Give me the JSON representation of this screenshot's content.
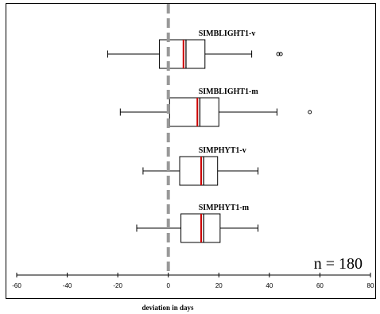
{
  "chart_data": {
    "type": "boxplot",
    "orientation": "horizontal",
    "xlabel": "deviation in days",
    "xlim": [
      -60,
      80
    ],
    "xticks": [
      -60,
      -40,
      -20,
      0,
      20,
      40,
      60,
      80
    ],
    "grid": false,
    "annotation": "n = 180",
    "reference_line": {
      "x": 0,
      "style": "dashed",
      "color": "#999999"
    },
    "mean_color": "#cc0000",
    "series": [
      {
        "name": "SIMBLIGHT1-v",
        "whisker_low": -24,
        "q1": -3.5,
        "median": 7,
        "q3": 14.5,
        "whisker_high": 33,
        "mean": 6,
        "outliers": [
          43.5,
          44.5
        ]
      },
      {
        "name": "SIMBLIGHT1-m",
        "whisker_low": -19,
        "q1": 0.5,
        "median": 12.5,
        "q3": 20,
        "whisker_high": 43,
        "mean": 11.5,
        "outliers": [
          56
        ]
      },
      {
        "name": "SIMPHYT1-v",
        "whisker_low": -10,
        "q1": 4.5,
        "median": 14,
        "q3": 19.5,
        "whisker_high": 35.5,
        "mean": 13,
        "outliers": []
      },
      {
        "name": "SIMPHYT1-m",
        "whisker_low": -12.5,
        "q1": 5,
        "median": 14,
        "q3": 20.5,
        "whisker_high": 35.5,
        "mean": 13,
        "outliers": []
      }
    ]
  }
}
